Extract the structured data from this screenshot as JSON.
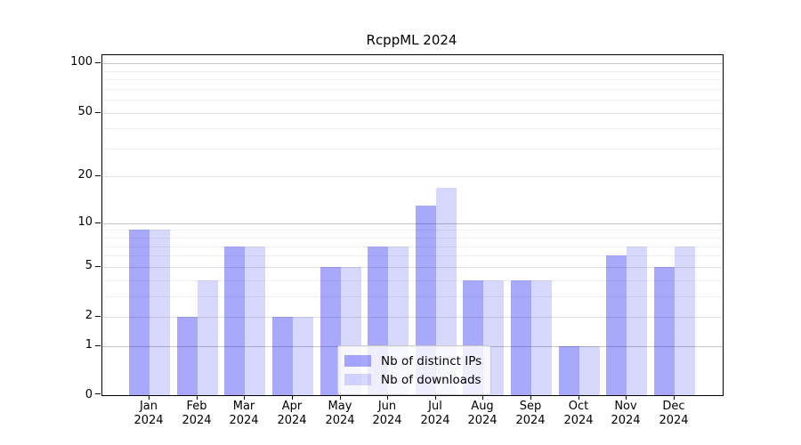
{
  "title": "RcppML 2024",
  "legend": {
    "items": [
      {
        "label": "Nb of distinct IPs",
        "color": "rgba(10,10,245,0.35)"
      },
      {
        "label": "Nb of downloads",
        "color": "rgba(10,10,245,0.16)"
      }
    ]
  },
  "axes": {
    "y_tick_labels": [
      "100",
      "50",
      "20",
      "10",
      "5",
      "2",
      "1",
      "0"
    ],
    "x_tick_year": "2024"
  },
  "chart_data": {
    "type": "bar",
    "title": "RcppML 2024",
    "categories": [
      "Jan 2024",
      "Feb 2024",
      "Mar 2024",
      "Apr 2024",
      "May 2024",
      "Jun 2024",
      "Jul 2024",
      "Aug 2024",
      "Sep 2024",
      "Oct 2024",
      "Nov 2024",
      "Dec 2024"
    ],
    "x_months": [
      "Jan",
      "Feb",
      "Mar",
      "Apr",
      "May",
      "Jun",
      "Jul",
      "Aug",
      "Sep",
      "Oct",
      "Nov",
      "Dec"
    ],
    "x_year": "2024",
    "series": [
      {
        "name": "Nb of distinct IPs",
        "color": "rgba(10,10,245,0.35)",
        "values": [
          9,
          2,
          7,
          2,
          5,
          7,
          13,
          4,
          4,
          1,
          6,
          5
        ]
      },
      {
        "name": "Nb of downloads",
        "color": "rgba(10,10,245,0.16)",
        "values": [
          9,
          4,
          7,
          2,
          5,
          7,
          17,
          4,
          4,
          1,
          7,
          7
        ]
      }
    ],
    "yscale": "log1p",
    "ylim": [
      0,
      112
    ],
    "yticks": [
      0,
      1,
      2,
      5,
      10,
      20,
      50,
      100
    ],
    "y_gridlines": {
      "strong": [
        1,
        10,
        100
      ],
      "medium": [
        2,
        5,
        20,
        50
      ],
      "minor": [
        3,
        4,
        6,
        7,
        8,
        9,
        30,
        40,
        60,
        70,
        80,
        90
      ]
    },
    "grid": true,
    "xlabel": "",
    "ylabel": "",
    "legend_position": "lower center inside"
  }
}
